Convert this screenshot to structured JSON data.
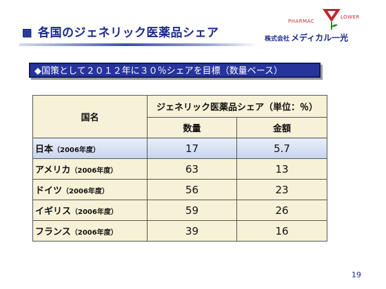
{
  "slide": {
    "title": "各国のジェネリック医薬品シェア",
    "banner": "◆国策として２０１２年に３０％シェアを目標（数量ベース）",
    "page_number": "19"
  },
  "logo": {
    "pharmac": "PHARMAC",
    "lower": "LOWER",
    "company_prefix": "株式会社",
    "company_name": "メディカル一光"
  },
  "table": {
    "country_header": "国名",
    "group_header": "ジェネリック医薬品シェア（単位：％）",
    "col_volume": "数量",
    "col_value": "金額",
    "rows": [
      {
        "country": "日本",
        "year": "（2006年度）",
        "volume": "17",
        "value": "5.7",
        "highlight": true
      },
      {
        "country": "アメリカ",
        "year": "（2006年度）",
        "volume": "63",
        "value": "13",
        "highlight": false
      },
      {
        "country": "ドイツ",
        "year": "（2006年度）",
        "volume": "56",
        "value": "23",
        "highlight": false
      },
      {
        "country": "イギリス",
        "year": "（2006年度）",
        "volume": "59",
        "value": "26",
        "highlight": false
      },
      {
        "country": "フランス",
        "year": "（2006年度）",
        "volume": "39",
        "value": "16",
        "highlight": false
      }
    ]
  }
}
